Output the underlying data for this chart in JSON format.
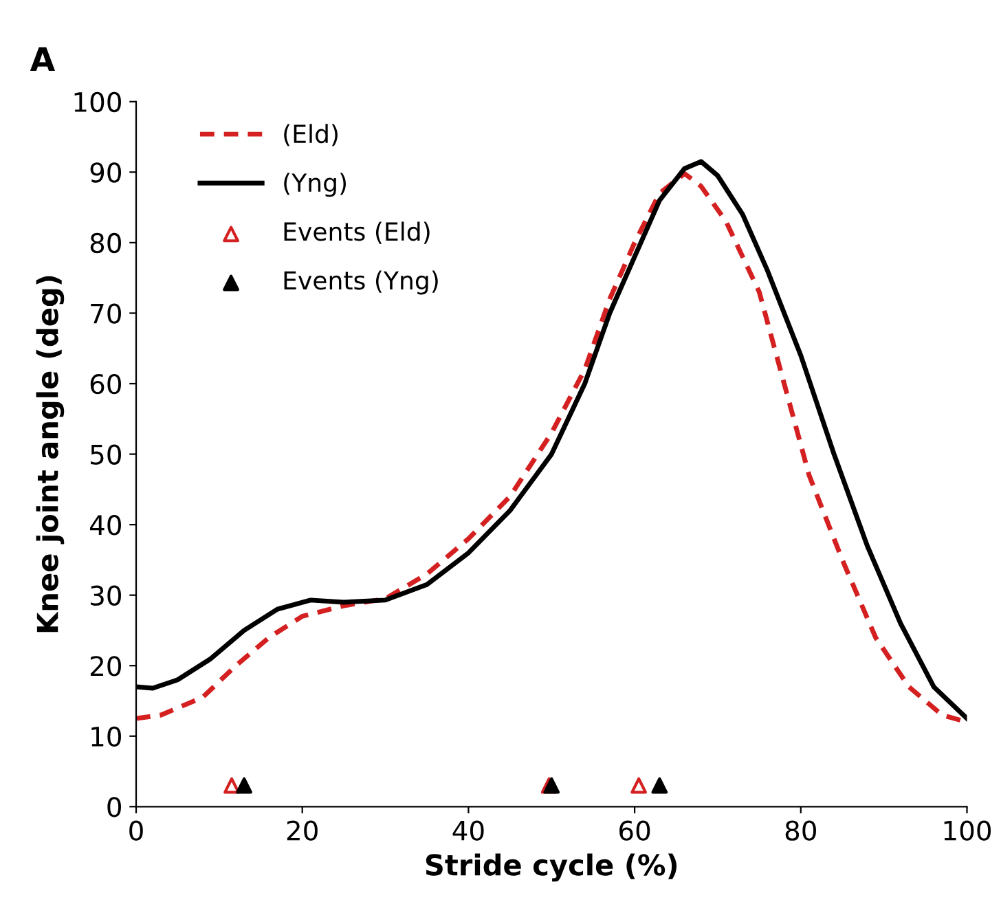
{
  "chart_data": {
    "type": "line",
    "title": "A",
    "xlabel": "Stride cycle (%)",
    "ylabel": "Knee joint angle (deg)",
    "xlim": [
      0,
      100
    ],
    "xticks": [
      0,
      20,
      40,
      60,
      80,
      100
    ],
    "ylim": [
      0,
      100
    ],
    "yticks": [
      0,
      10,
      20,
      30,
      40,
      50,
      60,
      70,
      80,
      90,
      100
    ],
    "grid": false,
    "legend": "top left",
    "series": [
      {
        "name": "(Eld)",
        "color": "#d42020",
        "line_style": "dashed",
        "marker": "none",
        "x": [
          0,
          3,
          8,
          12,
          16,
          20,
          25,
          30,
          35,
          40,
          45,
          50,
          54,
          57,
          60,
          63,
          66,
          68,
          71,
          75,
          78,
          81,
          85,
          89,
          93,
          97,
          100
        ],
        "values": [
          12.5,
          13,
          15.5,
          20,
          24,
          27,
          28.5,
          29.5,
          33,
          38,
          44,
          53,
          62,
          72,
          80,
          87,
          89.8,
          88,
          83,
          73,
          60,
          47,
          35,
          24,
          17,
          13,
          12
        ]
      },
      {
        "name": "(Yng)",
        "color": "#000000",
        "line_style": "solid",
        "marker": "none",
        "x": [
          0,
          2,
          5,
          9,
          13,
          17,
          21,
          25,
          30,
          35,
          40,
          45,
          50,
          54,
          57,
          60,
          63,
          66,
          68,
          70,
          73,
          76,
          80,
          84,
          88,
          92,
          96,
          100
        ],
        "values": [
          17,
          16.8,
          18,
          21,
          25,
          28,
          29.3,
          29,
          29.3,
          31.5,
          36,
          42,
          50,
          60,
          70,
          78,
          86,
          90.5,
          91.5,
          89.5,
          84,
          76,
          64,
          50,
          37,
          26,
          17,
          12.5
        ]
      },
      {
        "name": "Events (Eld)",
        "type": "scatter",
        "color": "#d42020",
        "marker": "triangle",
        "x": [
          11.5,
          49.7,
          60.5
        ],
        "values": [
          3,
          3,
          3
        ]
      },
      {
        "name": "Events (Yng)",
        "type": "scatter",
        "color": "#000000",
        "marker": "triangle",
        "x": [
          13,
          50,
          63
        ],
        "values": [
          3,
          3,
          3
        ]
      }
    ]
  }
}
